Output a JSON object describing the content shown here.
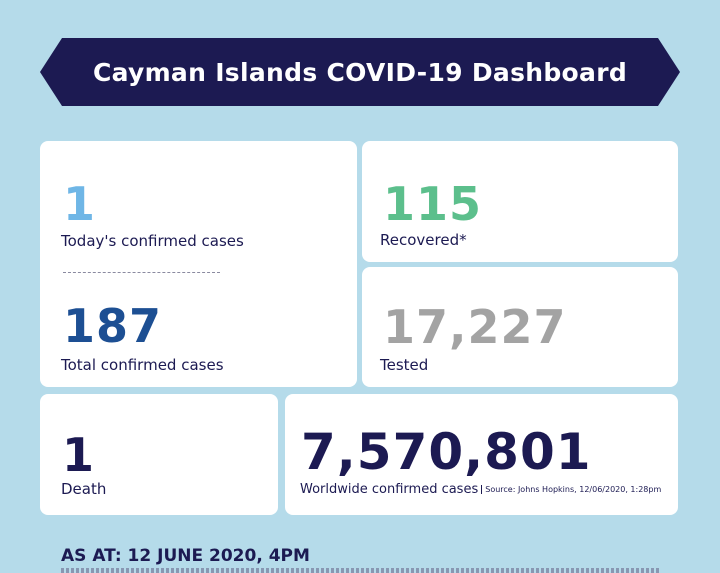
{
  "banner": {
    "title": "Cayman Islands COVID-19 Dashboard"
  },
  "stats": {
    "today_confirmed": {
      "value": "1",
      "label": "Today's confirmed cases",
      "color": "#6fb6e6"
    },
    "total_confirmed": {
      "value": "187",
      "label": "Total confirmed cases",
      "color": "#1d4f93"
    },
    "recovered": {
      "value": "115",
      "label": "Recovered*",
      "color": "#5cbf8c"
    },
    "tested": {
      "value": "17,227",
      "label": "Tested",
      "color": "#a3a3a3"
    },
    "death": {
      "value": "1",
      "label": "Death",
      "color": "#1c1a52"
    },
    "worldwide": {
      "value": "7,570,801",
      "label": "Worldwide confirmed cases",
      "source": "Source: Johns Hopkins, 12/06/2020, 1:28pm",
      "color": "#1c1a52"
    }
  },
  "footer": {
    "as_at": "AS AT: 12 JUNE 2020, 4PM"
  },
  "colors": {
    "background": "#b5dbea",
    "navy": "#1c1a52",
    "card": "#ffffff"
  }
}
